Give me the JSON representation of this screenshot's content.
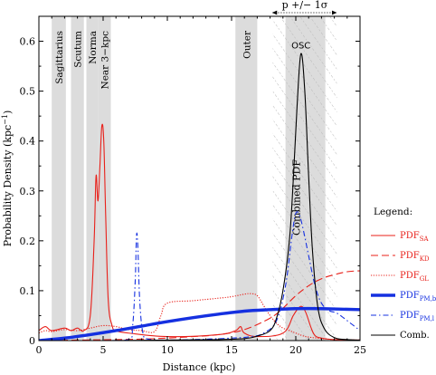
{
  "chart_data": {
    "type": "line",
    "xlabel": "Distance (kpc)",
    "ylabel": "Probability Density (kpc",
    "ylabel_sup": "−1",
    "ylabel_close": ")",
    "xlim": [
      0,
      25
    ],
    "ylim": [
      0,
      0.65
    ],
    "x_ticks": [
      0,
      5,
      10,
      15,
      20,
      25
    ],
    "y_ticks": [
      0,
      0.1,
      0.2,
      0.3,
      0.4,
      0.5,
      0.6
    ],
    "x_tick_labels": [
      "0",
      "5",
      "10",
      "15",
      "20",
      "25"
    ],
    "y_tick_labels": [
      "0",
      "0.1",
      "0.2",
      "0.3",
      "0.4",
      "0.5",
      "0.6"
    ],
    "arm_bands": [
      {
        "label": "Sagittarius",
        "x": [
          1.0,
          2.1
        ]
      },
      {
        "label": "Scutum",
        "x": [
          2.5,
          3.5
        ]
      },
      {
        "label": "Norma",
        "x": [
          3.7,
          4.6
        ]
      },
      {
        "label": "Near 3−kpc",
        "x": [
          4.6,
          5.6
        ]
      },
      {
        "label": "Outer",
        "x": [
          15.3,
          17.0
        ]
      },
      {
        "label": "OSC",
        "x": [
          19.2,
          22.3
        ]
      }
    ],
    "hatch_region": {
      "x": [
        18.2,
        23.2
      ],
      "label": "Combined PDF"
    },
    "top_annotation": {
      "label": "p +/− 1σ",
      "x": [
        18.2,
        23.2
      ]
    },
    "osc_label": "OSC",
    "legend": {
      "title": "Legend:",
      "position": "right-outside",
      "entries": [
        {
          "base": "PDF",
          "sub": "SA",
          "color": "#e8201a",
          "style": "solid"
        },
        {
          "base": "PDF",
          "sub": "KD",
          "color": "#e8201a",
          "style": "long-dash"
        },
        {
          "base": "PDF",
          "sub": "GL",
          "color": "#e8201a",
          "style": "dotted"
        },
        {
          "base": "PDF",
          "sub": "PM,b",
          "color": "#1530e0",
          "style": "thick"
        },
        {
          "base": "PDF",
          "sub": "PM,l",
          "color": "#1530e0",
          "style": "dash-dot"
        },
        {
          "base": "Comb.",
          "sub": "",
          "color": "#000000",
          "style": "solid"
        }
      ]
    },
    "series": [
      {
        "key": "SA",
        "color": "#e8201a",
        "x": [
          0,
          0.5,
          1,
          2,
          2.5,
          3,
          3.5,
          4,
          4.3,
          4.45,
          4.6,
          4.75,
          4.9,
          5.05,
          5.2,
          5.4,
          5.7,
          6,
          7,
          10,
          14,
          15.3,
          15.7,
          16,
          17,
          19,
          19.8,
          20.2,
          20.5,
          20.8,
          21.2,
          21.5,
          22,
          23,
          25
        ],
        "y": [
          0.02,
          0.028,
          0.02,
          0.025,
          0.02,
          0.025,
          0.02,
          0.05,
          0.2,
          0.33,
          0.28,
          0.35,
          0.43,
          0.4,
          0.25,
          0.08,
          0.03,
          0.02,
          0.015,
          0.008,
          0.012,
          0.02,
          0.028,
          0.015,
          0.008,
          0.015,
          0.05,
          0.065,
          0.068,
          0.055,
          0.025,
          0.01,
          0.005,
          0.002,
          0.001
        ]
      },
      {
        "key": "KD",
        "color": "#e8201a",
        "x": [
          0,
          3,
          6,
          8,
          10,
          12,
          14,
          16,
          18,
          19,
          20,
          21,
          22,
          23,
          24,
          25
        ],
        "y": [
          0,
          0.001,
          0.002,
          0.003,
          0.005,
          0.008,
          0.012,
          0.022,
          0.045,
          0.065,
          0.09,
          0.11,
          0.124,
          0.132,
          0.138,
          0.14
        ]
      },
      {
        "key": "GL",
        "color": "#e8201a",
        "x": [
          0,
          0.5,
          1,
          2,
          3,
          4,
          5,
          6,
          7,
          8,
          9,
          9.5,
          10,
          12,
          14,
          15,
          16,
          16.5,
          17,
          17.5,
          18,
          18.5,
          19,
          19.5,
          20,
          20.5,
          21,
          22,
          23,
          25
        ],
        "y": [
          0.015,
          0.02,
          0.018,
          0.022,
          0.02,
          0.025,
          0.03,
          0.028,
          0.022,
          0.02,
          0.018,
          0.05,
          0.075,
          0.08,
          0.085,
          0.088,
          0.093,
          0.094,
          0.09,
          0.07,
          0.05,
          0.035,
          0.025,
          0.02,
          0.015,
          0.01,
          0.007,
          0.004,
          0.002,
          0.001
        ]
      },
      {
        "key": "PM,b",
        "color": "#1530e0",
        "x": [
          0,
          2,
          4,
          6,
          8,
          10,
          12,
          14,
          16,
          18,
          20,
          22,
          25
        ],
        "y": [
          0,
          0.005,
          0.012,
          0.02,
          0.029,
          0.038,
          0.046,
          0.053,
          0.059,
          0.062,
          0.064,
          0.064,
          0.062
        ]
      },
      {
        "key": "PM,l",
        "color": "#1530e0",
        "x": [
          0,
          5,
          7,
          7.3,
          7.5,
          7.6,
          7.7,
          7.85,
          8.1,
          8.5,
          10,
          12,
          15,
          16.5,
          17.5,
          18.5,
          19.2,
          19.7,
          20,
          20.3,
          20.6,
          21,
          21.5,
          22,
          22.6,
          23.2,
          24,
          25
        ],
        "y": [
          0,
          0,
          0.002,
          0.03,
          0.12,
          0.21,
          0.19,
          0.08,
          0.015,
          0.003,
          0.001,
          0.002,
          0.005,
          0.008,
          0.015,
          0.04,
          0.11,
          0.21,
          0.255,
          0.25,
          0.22,
          0.17,
          0.11,
          0.075,
          0.06,
          0.055,
          0.04,
          0.02
        ]
      },
      {
        "key": "Comb.",
        "color": "#000000",
        "x": [
          0,
          5,
          10,
          14,
          16,
          17,
          18,
          18.5,
          19,
          19.5,
          19.8,
          20.1,
          20.4,
          20.7,
          21,
          21.3,
          21.7,
          22.2,
          23,
          24,
          25
        ],
        "y": [
          0,
          0,
          0.001,
          0.002,
          0.004,
          0.009,
          0.02,
          0.045,
          0.1,
          0.2,
          0.32,
          0.47,
          0.575,
          0.5,
          0.33,
          0.18,
          0.07,
          0.025,
          0.006,
          0.002,
          0.001
        ]
      }
    ]
  }
}
